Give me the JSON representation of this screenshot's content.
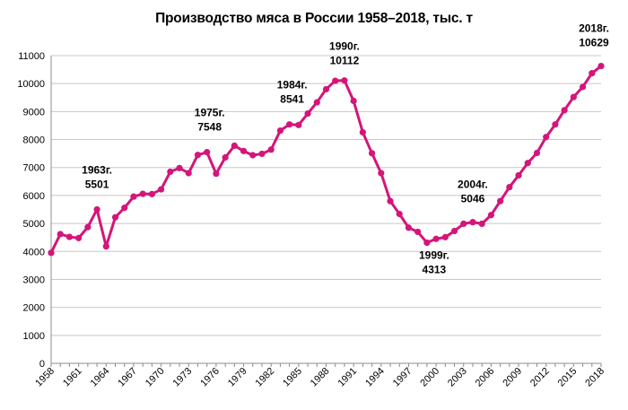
{
  "chart_data": {
    "type": "line",
    "title": "Производство мяса в России 1958–2018, тыс. т",
    "xlabel": "",
    "ylabel": "",
    "ylim": [
      0,
      11000
    ],
    "y_ticks": [
      0,
      1000,
      2000,
      3000,
      4000,
      5000,
      6000,
      7000,
      8000,
      9000,
      10000,
      11000
    ],
    "x_ticks": [
      1958,
      1961,
      1964,
      1967,
      1970,
      1973,
      1976,
      1979,
      1982,
      1985,
      1988,
      1991,
      1994,
      1997,
      2000,
      2003,
      2006,
      2009,
      2012,
      2015,
      2018
    ],
    "grid": "horizontal",
    "legend": "none",
    "series": [
      {
        "color": "#d4157a",
        "x": [
          1958,
          1959,
          1960,
          1961,
          1962,
          1963,
          1964,
          1965,
          1966,
          1967,
          1968,
          1969,
          1970,
          1971,
          1972,
          1973,
          1974,
          1975,
          1976,
          1977,
          1978,
          1979,
          1980,
          1981,
          1982,
          1983,
          1984,
          1985,
          1986,
          1987,
          1988,
          1989,
          1990,
          1991,
          1992,
          1993,
          1994,
          1995,
          1996,
          1997,
          1998,
          1999,
          2000,
          2001,
          2002,
          2003,
          2004,
          2005,
          2006,
          2007,
          2008,
          2009,
          2010,
          2011,
          2012,
          2013,
          2014,
          2015,
          2016,
          2017,
          2018
        ],
        "y": [
          3950,
          4620,
          4520,
          4480,
          4870,
          5501,
          4180,
          5220,
          5560,
          5960,
          6060,
          6050,
          6220,
          6850,
          6980,
          6800,
          7450,
          7548,
          6780,
          7360,
          7780,
          7590,
          7440,
          7490,
          7640,
          8320,
          8541,
          8520,
          8930,
          9330,
          9800,
          10100,
          10112,
          9380,
          8260,
          7510,
          6800,
          5800,
          5340,
          4850,
          4700,
          4313,
          4450,
          4510,
          4730,
          4990,
          5046,
          4990,
          5300,
          5800,
          6300,
          6720,
          7160,
          7520,
          8090,
          8540,
          9050,
          9520,
          9880,
          10370,
          10629
        ]
      }
    ],
    "annotations": [
      {
        "year": 1963,
        "label": "1963г.",
        "value": "5501"
      },
      {
        "year": 1975,
        "label": "1975г.",
        "value": "7548"
      },
      {
        "year": 1984,
        "label": "1984г.",
        "value": "8541"
      },
      {
        "year": 1990,
        "label": "1990г.",
        "value": "10112"
      },
      {
        "year": 1999,
        "label": "1999г.",
        "value": "4313"
      },
      {
        "year": 2004,
        "label": "2004г.",
        "value": "5046"
      },
      {
        "year": 2018,
        "label": "2018г.",
        "value": "10629"
      }
    ]
  }
}
